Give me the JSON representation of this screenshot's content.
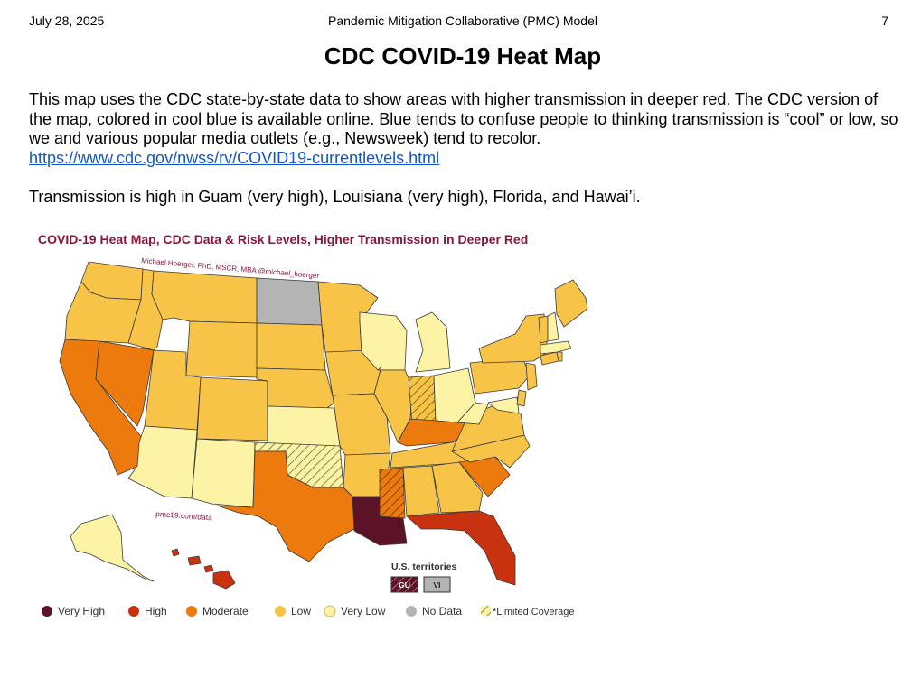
{
  "header": {
    "date": "July 28, 2025",
    "doc_title": "Pandemic Mitigation Collaborative (PMC) Model",
    "page_number": "7"
  },
  "page_title": "CDC COVID-19 Heat Map",
  "intro": {
    "text": "This map uses the CDC state-by-state data to show areas with higher transmission in deeper red. The CDC version of the map, colored in cool blue is available online. Blue tends to confuse people to thinking transmission is “cool” or low, so we and various popular media outlets (e.g., Newsweek) tend to recolor.",
    "link": "https://www.cdc.gov/nwss/rv/COVID19-currentlevels.html"
  },
  "summary": "Transmission is high in Guam (very high), Louisiana (very high), Florida, and Hawai’i.",
  "figure": {
    "title": "COVID-19 Heat Map, CDC Data & Risk Levels, Higher Transmission in Deeper Red",
    "credit": "Michael Hoerger, PhD, MSCR, MBA @michael_hoerger",
    "watermark": "pmc19.com/data",
    "territories_label": "U.S. territories",
    "territories": [
      {
        "code": "GU",
        "level": "Very High",
        "limited": true
      },
      {
        "code": "VI",
        "level": "No Data",
        "limited": false
      }
    ],
    "legend": [
      {
        "label": "Very High",
        "color": "#5c1227"
      },
      {
        "label": "High",
        "color": "#c9320f"
      },
      {
        "label": "Moderate",
        "color": "#ec7a0c"
      },
      {
        "label": "Low",
        "color": "#f8c447"
      },
      {
        "label": "Very Low",
        "color": "#fdf3a4"
      },
      {
        "label": "No Data",
        "color": "#b4b4b4"
      }
    ],
    "limited_label": "*Limited Coverage"
  },
  "chart_data": {
    "type": "choropleth",
    "title": "COVID-19 Heat Map, CDC Data & Risk Levels, Higher Transmission in Deeper Red",
    "levels": [
      "Very High",
      "High",
      "Moderate",
      "Low",
      "Very Low",
      "No Data"
    ],
    "states": [
      {
        "state": "WA",
        "level": "Low"
      },
      {
        "state": "OR",
        "level": "Low"
      },
      {
        "state": "CA",
        "level": "Moderate"
      },
      {
        "state": "NV",
        "level": "Moderate"
      },
      {
        "state": "ID",
        "level": "Low"
      },
      {
        "state": "MT",
        "level": "Low"
      },
      {
        "state": "WY",
        "level": "Low"
      },
      {
        "state": "UT",
        "level": "Low"
      },
      {
        "state": "AZ",
        "level": "Very Low"
      },
      {
        "state": "CO",
        "level": "Low"
      },
      {
        "state": "NM",
        "level": "Very Low"
      },
      {
        "state": "ND",
        "level": "No Data"
      },
      {
        "state": "SD",
        "level": "Low"
      },
      {
        "state": "NE",
        "level": "Low"
      },
      {
        "state": "KS",
        "level": "Very Low"
      },
      {
        "state": "OK",
        "level": "Very Low",
        "limited": true
      },
      {
        "state": "TX",
        "level": "Moderate"
      },
      {
        "state": "MN",
        "level": "Low"
      },
      {
        "state": "IA",
        "level": "Low"
      },
      {
        "state": "MO",
        "level": "Low"
      },
      {
        "state": "AR",
        "level": "Low"
      },
      {
        "state": "LA",
        "level": "Very High"
      },
      {
        "state": "WI",
        "level": "Very Low"
      },
      {
        "state": "IL",
        "level": "Low"
      },
      {
        "state": "MI",
        "level": "Very Low"
      },
      {
        "state": "IN",
        "level": "Low",
        "limited": true
      },
      {
        "state": "OH",
        "level": "Very Low"
      },
      {
        "state": "KY",
        "level": "Moderate"
      },
      {
        "state": "TN",
        "level": "Low"
      },
      {
        "state": "MS",
        "level": "Moderate",
        "limited": true
      },
      {
        "state": "AL",
        "level": "Low"
      },
      {
        "state": "GA",
        "level": "Low"
      },
      {
        "state": "FL",
        "level": "High"
      },
      {
        "state": "SC",
        "level": "Moderate"
      },
      {
        "state": "NC",
        "level": "Low"
      },
      {
        "state": "VA",
        "level": "Low"
      },
      {
        "state": "WV",
        "level": "Very Low"
      },
      {
        "state": "MD",
        "level": "Very Low"
      },
      {
        "state": "DE",
        "level": "Low"
      },
      {
        "state": "PA",
        "level": "Low"
      },
      {
        "state": "NJ",
        "level": "Low"
      },
      {
        "state": "NY",
        "level": "Low"
      },
      {
        "state": "CT",
        "level": "Low"
      },
      {
        "state": "RI",
        "level": "Low"
      },
      {
        "state": "MA",
        "level": "Very Low"
      },
      {
        "state": "VT",
        "level": "Low"
      },
      {
        "state": "NH",
        "level": "Very Low"
      },
      {
        "state": "ME",
        "level": "Low"
      },
      {
        "state": "AK",
        "level": "Very Low"
      },
      {
        "state": "HI",
        "level": "High"
      },
      {
        "state": "GU",
        "level": "Very High",
        "limited": true
      },
      {
        "state": "VI",
        "level": "No Data"
      }
    ]
  }
}
